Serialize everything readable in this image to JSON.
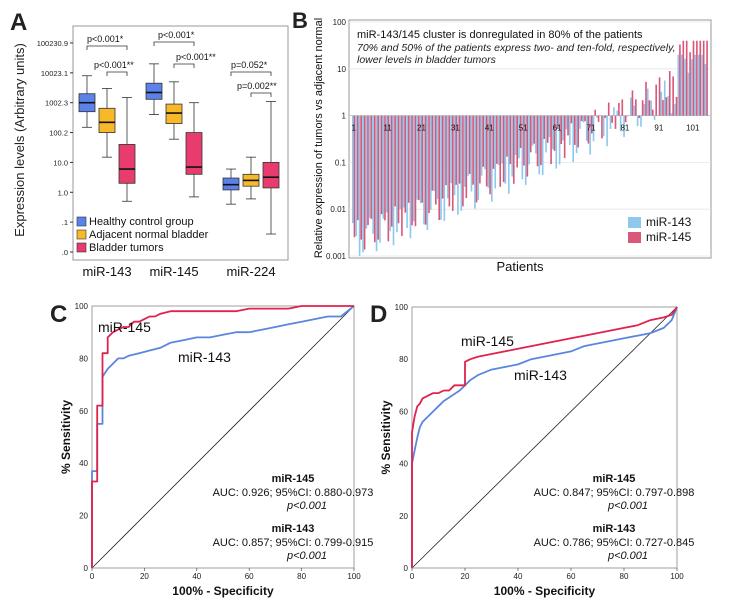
{
  "colors": {
    "healthy": "#5b82e8",
    "adjacent": "#f7b82a",
    "tumor": "#e83c6e",
    "mir143_bar": "#8ec8ea",
    "mir145_bar": "#d9587a",
    "mir145_roc": "#e0224c",
    "mir143_roc": "#5a86e0"
  },
  "chart_data": [
    {
      "panel": "A",
      "type": "box",
      "ylabel": "Expression levels (Arbitrary units)",
      "yscale": "log",
      "ylim": [
        0.01,
        200000
      ],
      "yticks": [
        {
          "value": 100230.9,
          "label": "100230.9"
        },
        {
          "value": 10023.1,
          "label": "10023.1"
        },
        {
          "value": 1002.3,
          "label": "1002.3"
        },
        {
          "value": 100.2,
          "label": "100.2"
        },
        {
          "value": 10.0,
          "label": "10.0"
        },
        {
          "value": 1.0,
          "label": "1.0"
        },
        {
          "value": 0.1,
          "label": ".1"
        },
        {
          "value": 0.01,
          "label": ".0"
        }
      ],
      "categories": [
        "miR-143",
        "miR-145",
        "miR-224"
      ],
      "legend": [
        "Healthy control group",
        "Adjacent normal bladder",
        "Bladder tumors"
      ],
      "boxes": [
        {
          "cat": 0,
          "group": 0,
          "min": 150,
          "q1": 500,
          "median": 1000,
          "q3": 2000,
          "max": 8000
        },
        {
          "cat": 0,
          "group": 1,
          "min": 15,
          "q1": 100,
          "median": 220,
          "q3": 650,
          "max": 3000
        },
        {
          "cat": 0,
          "group": 2,
          "min": 0.5,
          "q1": 2,
          "median": 6,
          "q3": 40,
          "max": 1500
        },
        {
          "cat": 1,
          "group": 0,
          "min": 400,
          "q1": 1300,
          "median": 2200,
          "q3": 4500,
          "max": 20000
        },
        {
          "cat": 1,
          "group": 1,
          "min": 60,
          "q1": 200,
          "median": 450,
          "q3": 900,
          "max": 5000
        },
        {
          "cat": 1,
          "group": 2,
          "min": 0.7,
          "q1": 4,
          "median": 7,
          "q3": 100,
          "max": 1000
        },
        {
          "cat": 2,
          "group": 0,
          "min": 0.4,
          "q1": 1.2,
          "median": 1.8,
          "q3": 3,
          "max": 6
        },
        {
          "cat": 2,
          "group": 1,
          "min": 0.6,
          "q1": 1.6,
          "median": 2.5,
          "q3": 4,
          "max": 15
        },
        {
          "cat": 2,
          "group": 2,
          "min": 0.04,
          "q1": 1.4,
          "median": 3.2,
          "q3": 10,
          "max": 1100
        }
      ],
      "annotations": [
        {
          "text": "p<0.001*"
        },
        {
          "text": "p<0.001**"
        },
        {
          "text": "p<0.001*"
        },
        {
          "text": "p<0.001**"
        },
        {
          "text": "p=0.052*"
        },
        {
          "text": "p=0.002**"
        }
      ]
    },
    {
      "panel": "B",
      "type": "bar",
      "yscale": "log",
      "ylim": [
        0.001,
        100
      ],
      "ylabel": "Relative expression of tumors vs adjacent normal",
      "xlabel": "Patients",
      "yticks": [
        {
          "value": 100,
          "label": "100"
        },
        {
          "value": 10,
          "label": "10"
        },
        {
          "value": 1,
          "label": "1"
        },
        {
          "value": 0.1,
          "label": "0.1"
        },
        {
          "value": 0.01,
          "label": "0.01"
        },
        {
          "value": 0.001,
          "label": "0.001"
        }
      ],
      "xticks": [
        "1",
        "11",
        "21",
        "31",
        "41",
        "51",
        "61",
        "71",
        "81",
        "91",
        "101"
      ],
      "title": "miR-143/145 cluster is donregulated in 80% of the patients",
      "subtitle_line1": "70% and 50% of the patients express two- and ten-fold, respectively,",
      "subtitle_line2": "lower levels in bladder tumors",
      "legend": [
        "miR-143",
        "miR-145"
      ],
      "n_patients": 105
    },
    {
      "panel": "C",
      "type": "line",
      "xlabel": "100% - Specificity",
      "ylabel": "% Sensitivity",
      "xlim": [
        0,
        100
      ],
      "ylim": [
        0,
        100
      ],
      "ticks": [
        "0",
        "20",
        "40",
        "60",
        "80",
        "100"
      ],
      "series": [
        {
          "name": "miR-145",
          "x": [
            0,
            0,
            2,
            2,
            4,
            4,
            6,
            6,
            8,
            10,
            12,
            14,
            16,
            18,
            20,
            22,
            24,
            26,
            30,
            35,
            40,
            45,
            50,
            55,
            60,
            65,
            70,
            75,
            80,
            85,
            90,
            95,
            100
          ],
          "y": [
            0,
            33,
            33,
            62,
            62,
            82,
            82,
            88,
            90,
            91,
            92,
            92,
            94,
            94,
            95,
            96,
            96,
            97,
            98,
            98,
            98,
            98,
            98,
            98,
            99,
            99,
            99,
            99,
            100,
            100,
            100,
            100,
            100
          ]
        },
        {
          "name": "miR-143",
          "x": [
            0,
            0,
            2,
            2,
            4,
            4,
            6,
            8,
            10,
            12,
            14,
            18,
            22,
            26,
            30,
            35,
            40,
            45,
            50,
            55,
            60,
            65,
            70,
            75,
            80,
            85,
            90,
            95,
            100
          ],
          "y": [
            0,
            37,
            37,
            55,
            55,
            73,
            76,
            78,
            80,
            80,
            81,
            82,
            83,
            84,
            86,
            87,
            88,
            88,
            89,
            90,
            90,
            91,
            92,
            93,
            94,
            95,
            96,
            96,
            100
          ]
        }
      ],
      "label_145": "miR-145",
      "label_143": "miR-143",
      "stats": [
        {
          "name": "miR-145",
          "auc": "AUC: 0.926; 95%CI: 0.880-0.973",
          "p": "p<0.001"
        },
        {
          "name": "miR-143",
          "auc": "AUC: 0.857; 95%CI: 0.799-0.915",
          "p": "p<0.001"
        }
      ]
    },
    {
      "panel": "D",
      "type": "line",
      "xlabel": "100% - Specificity",
      "ylabel": "% Sensitivity",
      "xlim": [
        0,
        100
      ],
      "ylim": [
        0,
        100
      ],
      "ticks": [
        "0",
        "20",
        "40",
        "60",
        "80",
        "100"
      ],
      "series": [
        {
          "name": "miR-145",
          "x": [
            0,
            0,
            1,
            2,
            3,
            4,
            6,
            8,
            10,
            12,
            14,
            16,
            18,
            20,
            20,
            22,
            25,
            30,
            35,
            40,
            45,
            50,
            55,
            60,
            65,
            70,
            75,
            80,
            85,
            90,
            95,
            98,
            100
          ],
          "y": [
            0,
            52,
            58,
            62,
            63,
            65,
            66,
            67,
            67,
            68,
            68,
            70,
            70,
            70,
            79,
            80,
            81,
            82,
            83,
            84,
            85,
            86,
            87,
            88,
            89,
            90,
            91,
            92,
            93,
            95,
            96,
            97,
            100
          ]
        },
        {
          "name": "miR-143",
          "x": [
            0,
            0,
            1,
            2,
            3,
            4,
            6,
            8,
            10,
            12,
            15,
            18,
            20,
            22,
            25,
            30,
            35,
            40,
            45,
            50,
            55,
            60,
            65,
            70,
            75,
            80,
            85,
            90,
            95,
            98,
            100
          ],
          "y": [
            0,
            40,
            45,
            50,
            54,
            56,
            58,
            60,
            62,
            64,
            66,
            68,
            70,
            72,
            74,
            76,
            77,
            78,
            80,
            81,
            82,
            83,
            85,
            86,
            87,
            88,
            89,
            90,
            92,
            95,
            100
          ]
        }
      ],
      "label_145": "miR-145",
      "label_143": "miR-143",
      "stats": [
        {
          "name": "miR-145",
          "auc": "AUC: 0.847; 95%CI: 0.797-0.898",
          "p": "p<0.001"
        },
        {
          "name": "miR-143",
          "auc": "AUC: 0.786; 95%CI: 0.727-0.845",
          "p": "p<0.001"
        }
      ]
    }
  ],
  "panels": {
    "a": "A",
    "b": "B",
    "c": "C",
    "d": "D"
  }
}
